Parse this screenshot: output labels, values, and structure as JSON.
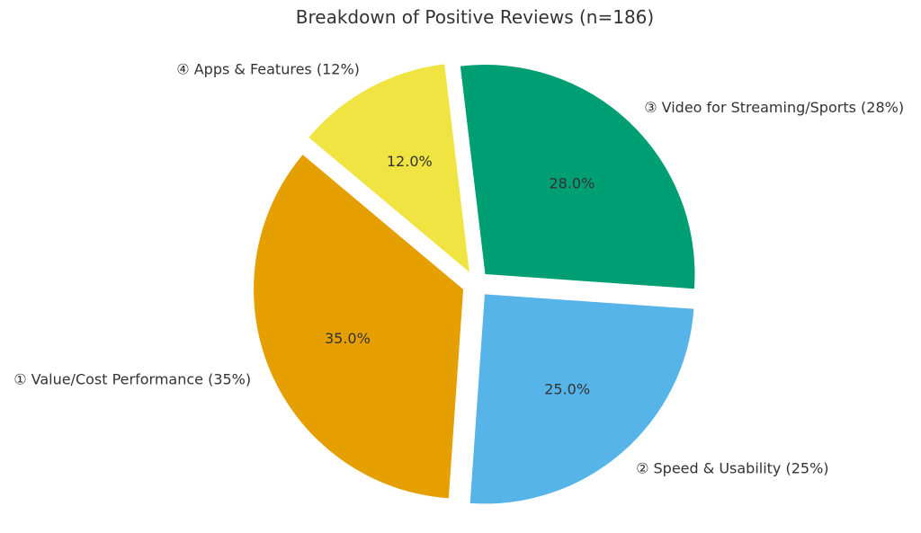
{
  "chart_data": {
    "type": "pie",
    "title": "Breakdown of Positive Reviews (n=186)",
    "slices": [
      {
        "label": "① Value/Cost Performance (35%)",
        "value": 35.0,
        "pct_label": "35.0%",
        "color": "#E69F00"
      },
      {
        "label": "② Speed & Usability (25%)",
        "value": 25.0,
        "pct_label": "25.0%",
        "color": "#56B4E9"
      },
      {
        "label": "③ Video for Streaming/Sports (28%)",
        "value": 28.0,
        "pct_label": "28.0%",
        "color": "#009E73"
      },
      {
        "label": "④ Apps & Features (12%)",
        "value": 12.0,
        "pct_label": "12.0%",
        "color": "#F0E442"
      }
    ],
    "start_angle_deg": 140,
    "direction": "counterclockwise",
    "exploded": true,
    "legend": "none"
  }
}
